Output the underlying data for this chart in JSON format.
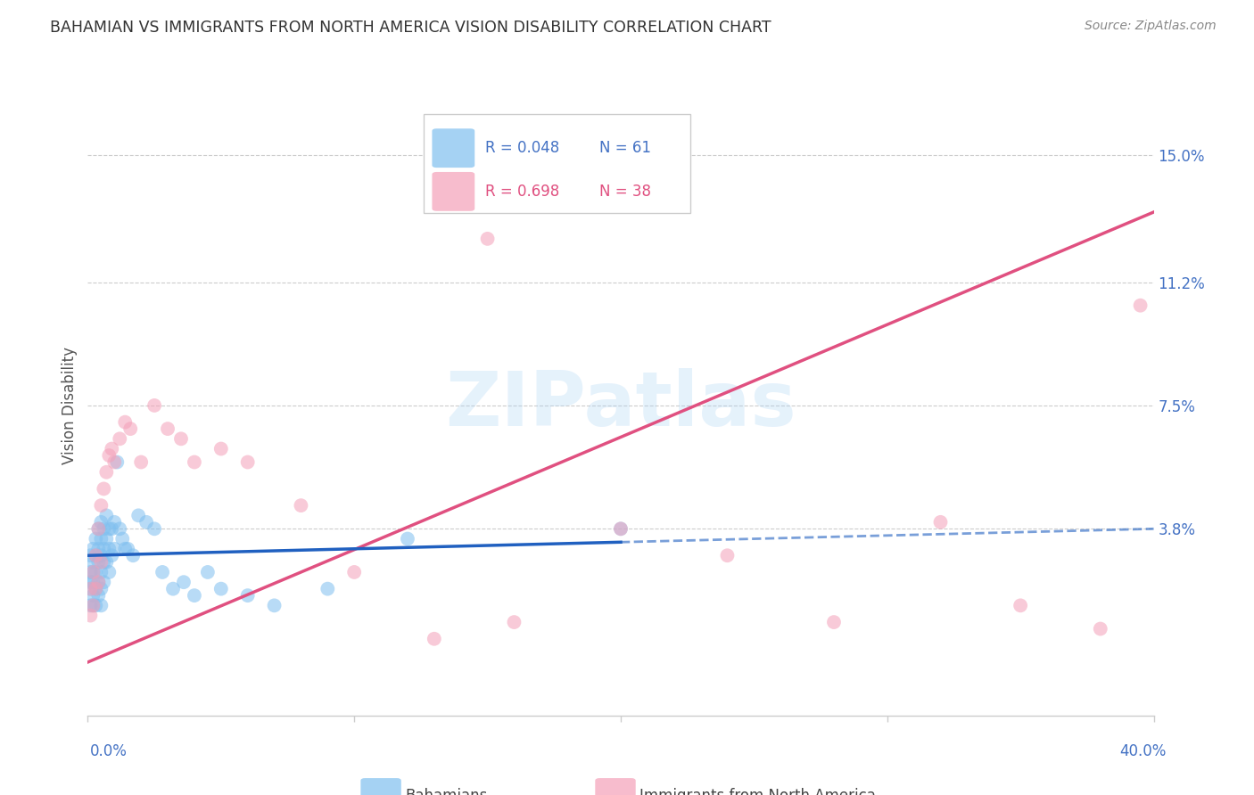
{
  "title": "BAHAMIAN VS IMMIGRANTS FROM NORTH AMERICA VISION DISABILITY CORRELATION CHART",
  "source": "Source: ZipAtlas.com",
  "ylabel": "Vision Disability",
  "yticks": [
    0.0,
    0.038,
    0.075,
    0.112,
    0.15
  ],
  "ytick_labels": [
    "",
    "3.8%",
    "7.5%",
    "11.2%",
    "15.0%"
  ],
  "xlim": [
    0.0,
    0.4
  ],
  "ylim": [
    -0.018,
    0.168
  ],
  "legend_r1": "R = 0.048",
  "legend_n1": "N = 61",
  "legend_r2": "R = 0.698",
  "legend_n2": "N = 38",
  "color_blue": "#7fbfef",
  "color_pink": "#f4a0b8",
  "color_blue_line": "#2060c0",
  "color_pink_line": "#e05080",
  "watermark": "ZIPatlas",
  "blue_scatter_x": [
    0.001,
    0.001,
    0.001,
    0.001,
    0.001,
    0.002,
    0.002,
    0.002,
    0.002,
    0.002,
    0.002,
    0.003,
    0.003,
    0.003,
    0.003,
    0.003,
    0.004,
    0.004,
    0.004,
    0.004,
    0.004,
    0.005,
    0.005,
    0.005,
    0.005,
    0.005,
    0.005,
    0.006,
    0.006,
    0.006,
    0.006,
    0.007,
    0.007,
    0.007,
    0.008,
    0.008,
    0.008,
    0.009,
    0.009,
    0.01,
    0.01,
    0.011,
    0.012,
    0.013,
    0.014,
    0.015,
    0.017,
    0.019,
    0.022,
    0.025,
    0.028,
    0.032,
    0.036,
    0.04,
    0.045,
    0.05,
    0.06,
    0.07,
    0.09,
    0.12,
    0.2
  ],
  "blue_scatter_y": [
    0.03,
    0.025,
    0.02,
    0.015,
    0.022,
    0.032,
    0.028,
    0.022,
    0.018,
    0.025,
    0.015,
    0.035,
    0.03,
    0.025,
    0.02,
    0.015,
    0.038,
    0.032,
    0.028,
    0.022,
    0.018,
    0.04,
    0.035,
    0.03,
    0.025,
    0.02,
    0.015,
    0.038,
    0.032,
    0.028,
    0.022,
    0.042,
    0.035,
    0.028,
    0.038,
    0.032,
    0.025,
    0.038,
    0.03,
    0.04,
    0.032,
    0.058,
    0.038,
    0.035,
    0.032,
    0.032,
    0.03,
    0.042,
    0.04,
    0.038,
    0.025,
    0.02,
    0.022,
    0.018,
    0.025,
    0.02,
    0.018,
    0.015,
    0.02,
    0.035,
    0.038
  ],
  "pink_scatter_x": [
    0.001,
    0.001,
    0.002,
    0.002,
    0.003,
    0.003,
    0.004,
    0.004,
    0.005,
    0.005,
    0.006,
    0.007,
    0.008,
    0.009,
    0.01,
    0.012,
    0.014,
    0.016,
    0.02,
    0.025,
    0.03,
    0.035,
    0.04,
    0.05,
    0.06,
    0.08,
    0.1,
    0.13,
    0.16,
    0.2,
    0.24,
    0.28,
    0.32,
    0.35,
    0.38,
    0.395,
    0.15,
    0.22
  ],
  "pink_scatter_y": [
    0.02,
    0.012,
    0.025,
    0.015,
    0.03,
    0.02,
    0.038,
    0.022,
    0.045,
    0.028,
    0.05,
    0.055,
    0.06,
    0.062,
    0.058,
    0.065,
    0.07,
    0.068,
    0.058,
    0.075,
    0.068,
    0.065,
    0.058,
    0.062,
    0.058,
    0.045,
    0.025,
    0.005,
    0.01,
    0.038,
    0.03,
    0.01,
    0.04,
    0.015,
    0.008,
    0.105,
    0.125,
    0.14
  ],
  "pink_line_x0": 0.0,
  "pink_line_y0": -0.002,
  "pink_line_x1": 0.4,
  "pink_line_y1": 0.133,
  "blue_line_solid_x0": 0.0,
  "blue_line_solid_y0": 0.03,
  "blue_line_solid_x1": 0.2,
  "blue_line_solid_y1": 0.034,
  "blue_line_dash_x0": 0.2,
  "blue_line_dash_y0": 0.034,
  "blue_line_dash_x1": 0.4,
  "blue_line_dash_y1": 0.038
}
